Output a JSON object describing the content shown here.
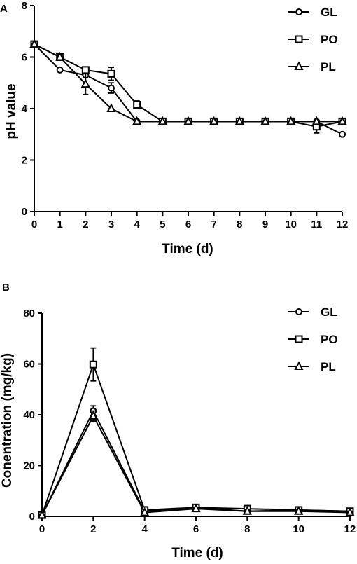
{
  "chart_data": [
    {
      "panel": "A",
      "type": "line",
      "xlabel": "Time (d)",
      "ylabel": "pH value",
      "xlim": [
        0,
        12
      ],
      "ylim": [
        0,
        8
      ],
      "xticks": [
        0,
        1,
        2,
        3,
        4,
        5,
        6,
        7,
        8,
        9,
        10,
        11,
        12
      ],
      "yticks": [
        0,
        2,
        4,
        6,
        8
      ],
      "grid": false,
      "legend_position": "top-right",
      "series": [
        {
          "name": "GL",
          "marker": "circle",
          "x": [
            0,
            1,
            2,
            3,
            4,
            5,
            6,
            7,
            8,
            9,
            10,
            11,
            12
          ],
          "y": [
            6.5,
            5.5,
            5.3,
            4.8,
            3.5,
            3.5,
            3.5,
            3.5,
            3.5,
            3.5,
            3.5,
            3.5,
            3.0
          ],
          "err": [
            0,
            0,
            0,
            0.2,
            0,
            0,
            0,
            0,
            0,
            0,
            0,
            0,
            0
          ]
        },
        {
          "name": "PO",
          "marker": "square",
          "x": [
            0,
            1,
            2,
            3,
            4,
            5,
            6,
            7,
            8,
            9,
            10,
            11,
            12
          ],
          "y": [
            6.5,
            6.0,
            5.5,
            5.35,
            4.15,
            3.5,
            3.5,
            3.5,
            3.5,
            3.5,
            3.5,
            3.3,
            3.5
          ],
          "err": [
            0,
            0,
            0.1,
            0.25,
            0.15,
            0,
            0,
            0,
            0,
            0,
            0,
            0.25,
            0
          ]
        },
        {
          "name": "PL",
          "marker": "triangle",
          "x": [
            0,
            1,
            2,
            3,
            4,
            5,
            6,
            7,
            8,
            9,
            10,
            11,
            12
          ],
          "y": [
            6.5,
            6.0,
            4.95,
            4.0,
            3.5,
            3.5,
            3.5,
            3.5,
            3.5,
            3.5,
            3.5,
            3.5,
            3.5
          ],
          "err": [
            0,
            0,
            0.4,
            0,
            0,
            0,
            0,
            0,
            0,
            0,
            0,
            0,
            0
          ]
        }
      ]
    },
    {
      "panel": "B",
      "type": "line",
      "xlabel": "Time (d)",
      "ylabel": "Conentration (mg/kg)",
      "xlim": [
        0,
        12
      ],
      "ylim": [
        0,
        80
      ],
      "xticks": [
        0,
        2,
        4,
        6,
        8,
        10,
        12
      ],
      "yticks": [
        0,
        20,
        40,
        60,
        80
      ],
      "grid": false,
      "legend_position": "top-right",
      "series": [
        {
          "name": "GL",
          "marker": "circle",
          "x": [
            0,
            2,
            4,
            6,
            8,
            10,
            12
          ],
          "y": [
            0.5,
            41.5,
            2.0,
            3.5,
            2.0,
            2.5,
            2.0
          ],
          "err": [
            0,
            2.0,
            0.5,
            0.5,
            0.5,
            0.5,
            0.5
          ]
        },
        {
          "name": "PO",
          "marker": "square",
          "x": [
            0,
            2,
            4,
            6,
            8,
            10,
            12
          ],
          "y": [
            0.5,
            59.8,
            2.5,
            3.5,
            3.0,
            2.5,
            2.0
          ],
          "err": [
            0,
            6.5,
            0.5,
            0.5,
            0.5,
            0.5,
            0.5
          ]
        },
        {
          "name": "PL",
          "marker": "triangle",
          "x": [
            0,
            2,
            4,
            6,
            8,
            10,
            12
          ],
          "y": [
            0.5,
            39.5,
            1.5,
            3.0,
            2.0,
            2.0,
            1.5
          ],
          "err": [
            0,
            2.0,
            0.5,
            0.5,
            0.5,
            0.5,
            0.5
          ]
        }
      ]
    }
  ]
}
